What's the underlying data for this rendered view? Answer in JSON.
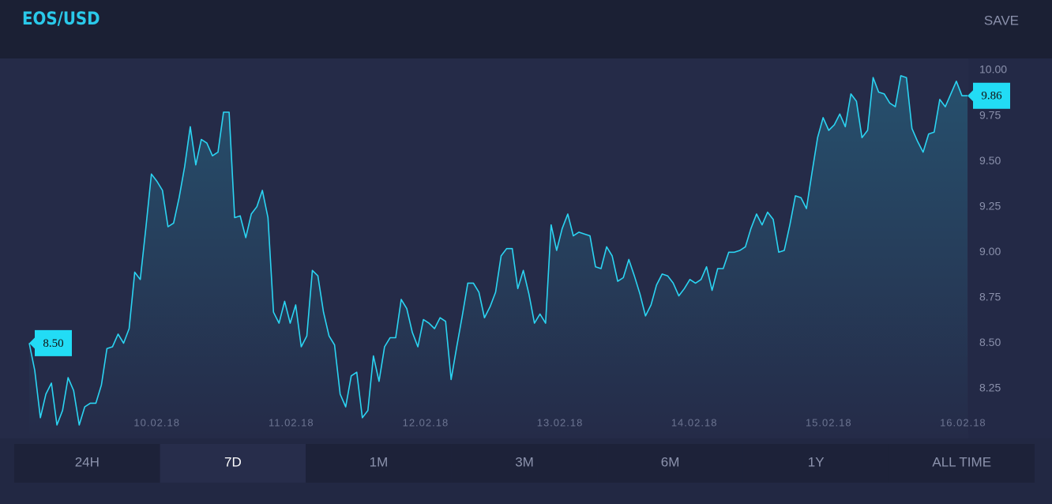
{
  "header": {
    "title": "EOS/USD",
    "save": "SAVE"
  },
  "chart_data": {
    "type": "line",
    "color": "#2bd4f2",
    "values": [
      8.5,
      8.35,
      8.09,
      8.22,
      8.28,
      8.05,
      8.13,
      8.31,
      8.24,
      8.05,
      8.15,
      8.17,
      8.17,
      8.27,
      8.47,
      8.48,
      8.55,
      8.5,
      8.58,
      8.89,
      8.85,
      9.13,
      9.43,
      9.39,
      9.34,
      9.14,
      9.16,
      9.3,
      9.47,
      9.69,
      9.48,
      9.62,
      9.6,
      9.53,
      9.55,
      9.77,
      9.77,
      9.19,
      9.2,
      9.08,
      9.21,
      9.25,
      9.34,
      9.19,
      8.67,
      8.61,
      8.73,
      8.61,
      8.71,
      8.48,
      8.54,
      8.9,
      8.87,
      8.67,
      8.54,
      8.49,
      8.22,
      8.15,
      8.32,
      8.34,
      8.09,
      8.13,
      8.43,
      8.29,
      8.48,
      8.53,
      8.53,
      8.74,
      8.69,
      8.56,
      8.48,
      8.63,
      8.61,
      8.58,
      8.64,
      8.62,
      8.3,
      8.48,
      8.65,
      8.83,
      8.83,
      8.78,
      8.64,
      8.7,
      8.78,
      8.98,
      9.02,
      9.02,
      8.8,
      8.9,
      8.77,
      8.61,
      8.66,
      8.61,
      9.15,
      9.01,
      9.13,
      9.21,
      9.09,
      9.11,
      9.1,
      9.09,
      8.92,
      8.91,
      9.03,
      8.98,
      8.84,
      8.86,
      8.96,
      8.87,
      8.77,
      8.65,
      8.71,
      8.82,
      8.88,
      8.87,
      8.83,
      8.76,
      8.8,
      8.85,
      8.83,
      8.85,
      8.92,
      8.79,
      8.91,
      8.91,
      9.0,
      9.0,
      9.01,
      9.03,
      9.13,
      9.21,
      9.15,
      9.22,
      9.18,
      9.0,
      9.01,
      9.15,
      9.31,
      9.3,
      9.24,
      9.44,
      9.63,
      9.74,
      9.67,
      9.7,
      9.76,
      9.69,
      9.87,
      9.83,
      9.63,
      9.67,
      9.96,
      9.88,
      9.87,
      9.82,
      9.8,
      9.97,
      9.96,
      9.68,
      9.61,
      9.55,
      9.65,
      9.66,
      9.84,
      9.8,
      9.87,
      9.94,
      9.86,
      9.86
    ],
    "value_labels": [
      "8.50",
      null,
      null,
      null,
      null,
      null,
      null,
      null,
      null,
      null,
      null,
      null,
      null,
      null,
      null,
      null,
      null,
      null,
      null,
      null,
      null,
      null,
      null,
      null,
      null,
      null,
      null,
      null,
      null,
      null,
      null,
      null,
      null,
      null,
      null,
      null,
      null,
      null,
      null,
      null,
      null,
      null,
      null,
      null,
      null,
      null,
      null,
      null,
      null,
      null,
      null,
      null,
      null,
      null,
      null,
      null,
      null,
      null,
      null,
      null,
      null,
      null,
      null,
      null,
      null,
      null,
      null,
      null,
      null,
      null,
      null,
      null,
      null,
      null,
      null,
      null,
      null,
      null,
      null,
      null,
      null,
      null,
      null,
      null,
      null,
      null,
      null,
      null,
      null,
      null,
      null,
      null,
      null,
      null,
      null,
      null,
      null,
      null,
      null,
      null,
      null,
      null,
      null,
      null,
      null,
      null,
      null,
      null,
      null,
      null,
      null,
      null,
      null,
      null,
      null,
      null,
      null,
      null,
      null,
      null,
      null,
      null,
      null,
      null,
      null,
      null,
      null,
      null,
      null,
      null,
      null,
      null,
      null,
      null,
      null,
      null,
      null,
      null,
      null,
      null,
      null,
      null,
      null,
      null,
      null,
      null,
      null,
      null,
      null,
      null,
      null,
      null,
      null,
      null,
      null,
      null,
      null,
      null,
      null,
      null,
      null,
      null,
      null,
      null,
      null,
      null,
      null,
      null,
      null,
      "9.86"
    ],
    "xlim": [
      0,
      169
    ],
    "xticks": [
      {
        "value": 23,
        "label": "10.02.18"
      },
      {
        "value": 47.2,
        "label": "11.02.18"
      },
      {
        "value": 71.4,
        "label": "12.02.18"
      },
      {
        "value": 95.6,
        "label": "13.02.18"
      },
      {
        "value": 119.8,
        "label": "14.02.18"
      },
      {
        "value": 144,
        "label": "15.02.18"
      },
      {
        "value": 168.2,
        "label": "16.02.18"
      }
    ],
    "ylim": [
      8.05,
      10.05
    ],
    "yticks": [
      {
        "value": 10,
        "label": "10.00"
      },
      {
        "value": 9.75,
        "label": "9.75"
      },
      {
        "value": 9.5,
        "label": "9.50"
      },
      {
        "value": 9.25,
        "label": "9.25"
      },
      {
        "value": 9,
        "label": "9.00"
      },
      {
        "value": 8.75,
        "label": "8.75"
      },
      {
        "value": 8.5,
        "label": "8.50"
      },
      {
        "value": 8.25,
        "label": "8.25"
      }
    ]
  },
  "tabs": {
    "items": [
      "24H",
      "7D",
      "1M",
      "3M",
      "6M",
      "1Y",
      "ALL TIME"
    ],
    "active_index": 1
  }
}
